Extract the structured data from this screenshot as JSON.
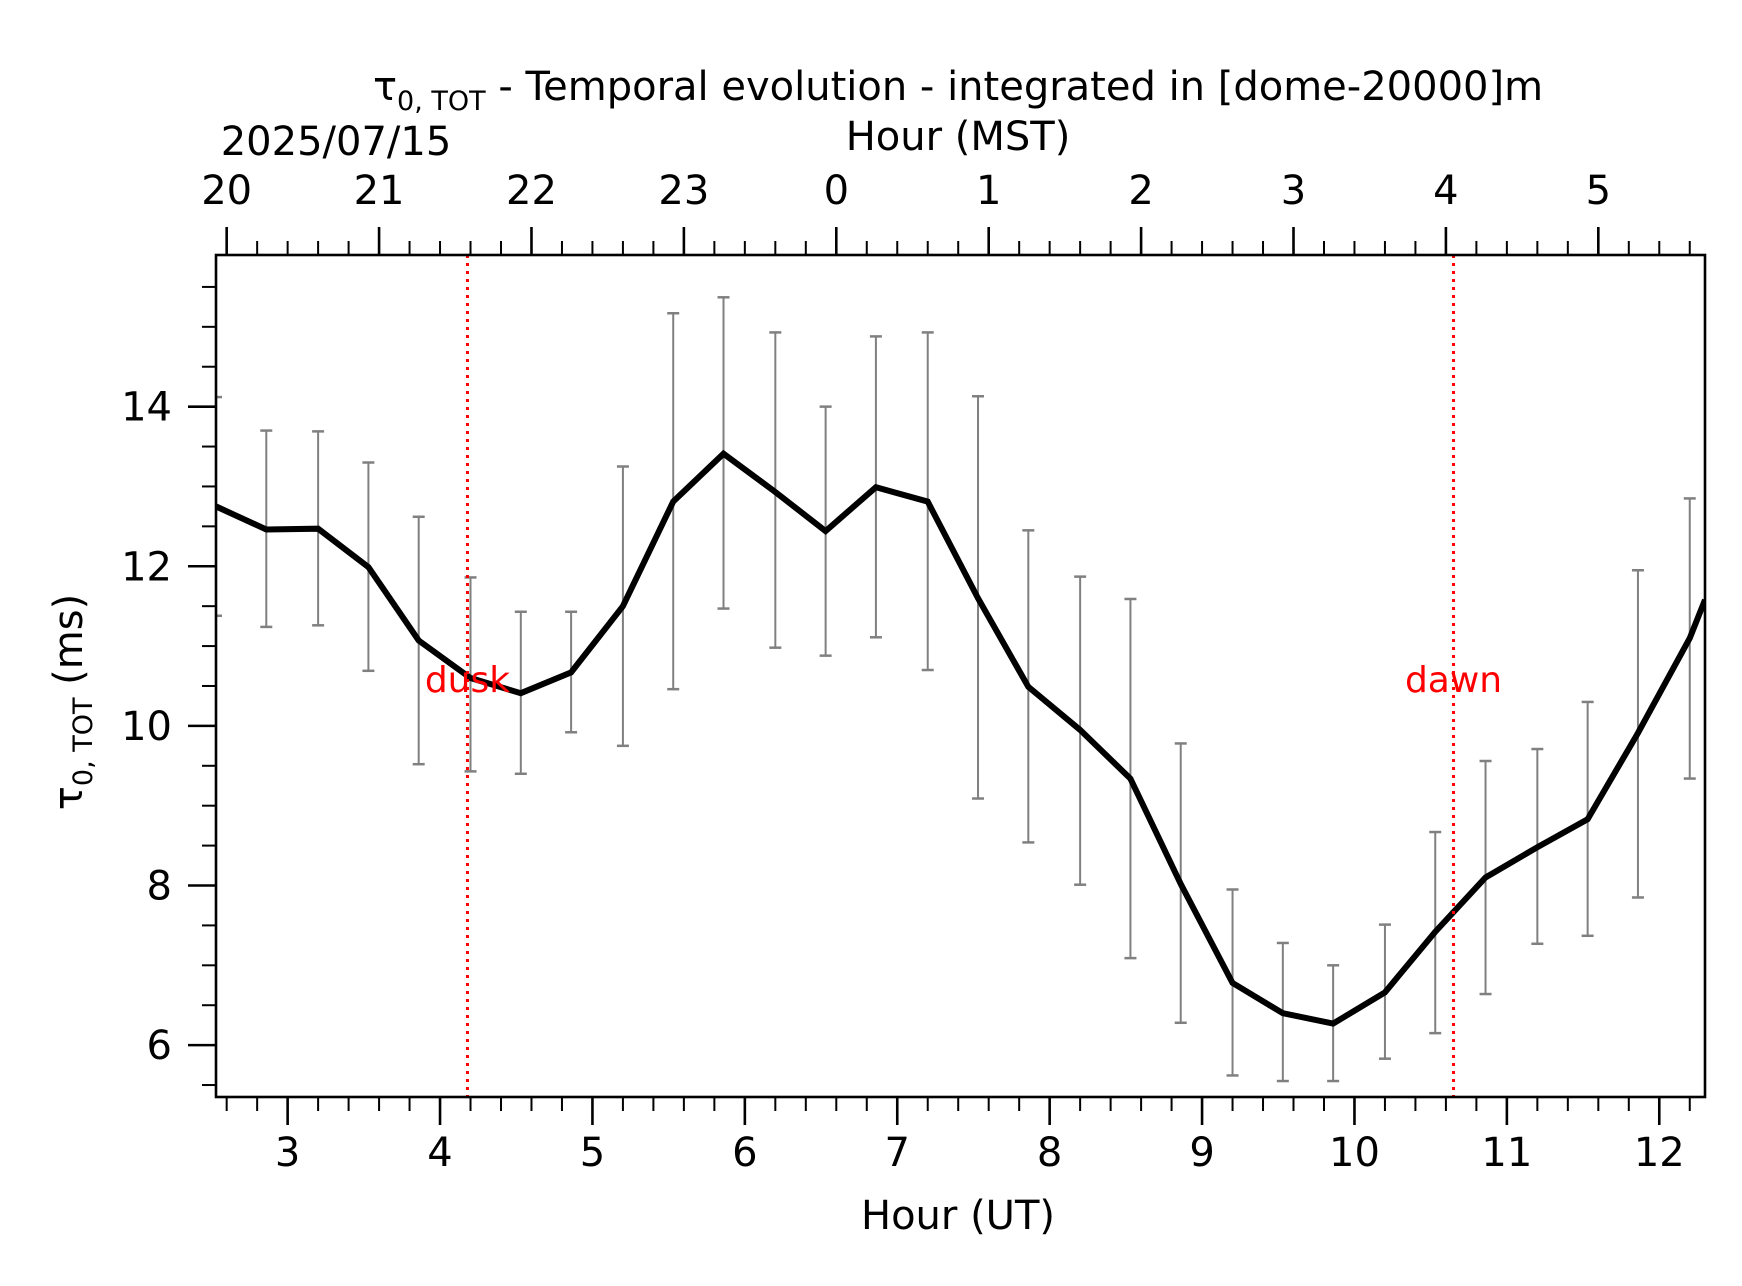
{
  "colors": {
    "line": "#000000",
    "errorbar": "#808080",
    "marker": "#ff0000",
    "axis": "#000000",
    "background": "#ffffff"
  },
  "chart_data": {
    "type": "line",
    "title": {
      "symbol": "τ",
      "subscript": "0, TOT",
      "text": " - Temporal evolution - integrated in [dome-20000]m"
    },
    "date_label": "2025/07/15",
    "xlabel": "Hour (UT)",
    "xlabel_top": "Hour (MST)",
    "ylabel": {
      "symbol": "τ",
      "subscript": "0, TOT",
      "text": " (ms)"
    },
    "xlim": [
      2.53,
      12.3
    ],
    "ylim": [
      5.35,
      15.9
    ],
    "xticks": [
      3,
      4,
      5,
      6,
      7,
      8,
      9,
      10,
      11,
      12
    ],
    "xticklabels": [
      "3",
      "4",
      "5",
      "6",
      "7",
      "8",
      "9",
      "10",
      "11",
      "12"
    ],
    "xticks_top": [
      2.6,
      3.6,
      4.6,
      5.6,
      6.6,
      7.6,
      8.6,
      9.6,
      10.6,
      11.6
    ],
    "xticklabels_top": [
      "20",
      "21",
      "22",
      "23",
      "0",
      "1",
      "2",
      "3",
      "4",
      "5"
    ],
    "yticks": [
      6,
      8,
      10,
      12,
      14
    ],
    "yticklabels": [
      "6",
      "8",
      "10",
      "12",
      "14"
    ],
    "grid": false,
    "legend": "none",
    "series": [
      {
        "x": [
          2.53,
          2.86,
          3.2,
          3.53,
          3.86,
          4.2,
          4.53,
          4.86,
          5.2,
          5.53,
          5.86,
          6.2,
          6.53,
          6.86,
          7.2,
          7.53,
          7.86,
          8.2,
          8.53,
          8.86,
          9.2,
          9.53,
          9.86,
          10.2,
          10.53,
          10.86,
          11.2,
          11.53,
          11.86,
          12.2,
          12.3
        ],
        "y": [
          12.75,
          12.46,
          12.47,
          11.99,
          11.07,
          10.6,
          10.41,
          10.67,
          11.5,
          12.81,
          13.41,
          12.93,
          12.44,
          12.99,
          12.81,
          11.6,
          10.49,
          9.95,
          9.34,
          8.02,
          6.78,
          6.4,
          6.27,
          6.66,
          7.42,
          8.1,
          8.48,
          8.83,
          9.91,
          11.1,
          11.58
        ]
      }
    ],
    "errorbars": {
      "x": [
        2.53,
        2.86,
        3.2,
        3.53,
        3.86,
        4.2,
        4.53,
        4.86,
        5.2,
        5.53,
        5.86,
        6.2,
        6.53,
        6.86,
        7.2,
        7.53,
        7.86,
        8.2,
        8.53,
        8.86,
        9.2,
        9.53,
        9.86,
        10.2,
        10.53,
        10.86,
        11.2,
        11.53,
        11.86,
        12.2
      ],
      "low": [
        11.38,
        11.24,
        11.26,
        10.69,
        9.52,
        9.43,
        9.4,
        9.92,
        9.75,
        10.46,
        11.47,
        10.98,
        10.88,
        11.11,
        10.7,
        9.09,
        8.54,
        8.01,
        7.09,
        6.28,
        5.62,
        5.55,
        5.55,
        5.83,
        6.15,
        6.64,
        7.27,
        7.37,
        7.85,
        9.34
      ],
      "high": [
        14.12,
        13.7,
        13.69,
        13.3,
        12.62,
        11.86,
        11.43,
        11.43,
        13.25,
        15.17,
        15.37,
        14.93,
        14.0,
        14.88,
        14.93,
        14.13,
        12.45,
        11.87,
        11.59,
        9.78,
        7.95,
        7.28,
        7.0,
        7.51,
        8.67,
        9.56,
        9.71,
        10.3,
        11.95,
        12.85
      ]
    },
    "annotations": [
      {
        "label": "dusk",
        "x": 4.18,
        "y": 10.6
      },
      {
        "label": "dawn",
        "x": 10.65,
        "y": 10.6
      }
    ]
  }
}
